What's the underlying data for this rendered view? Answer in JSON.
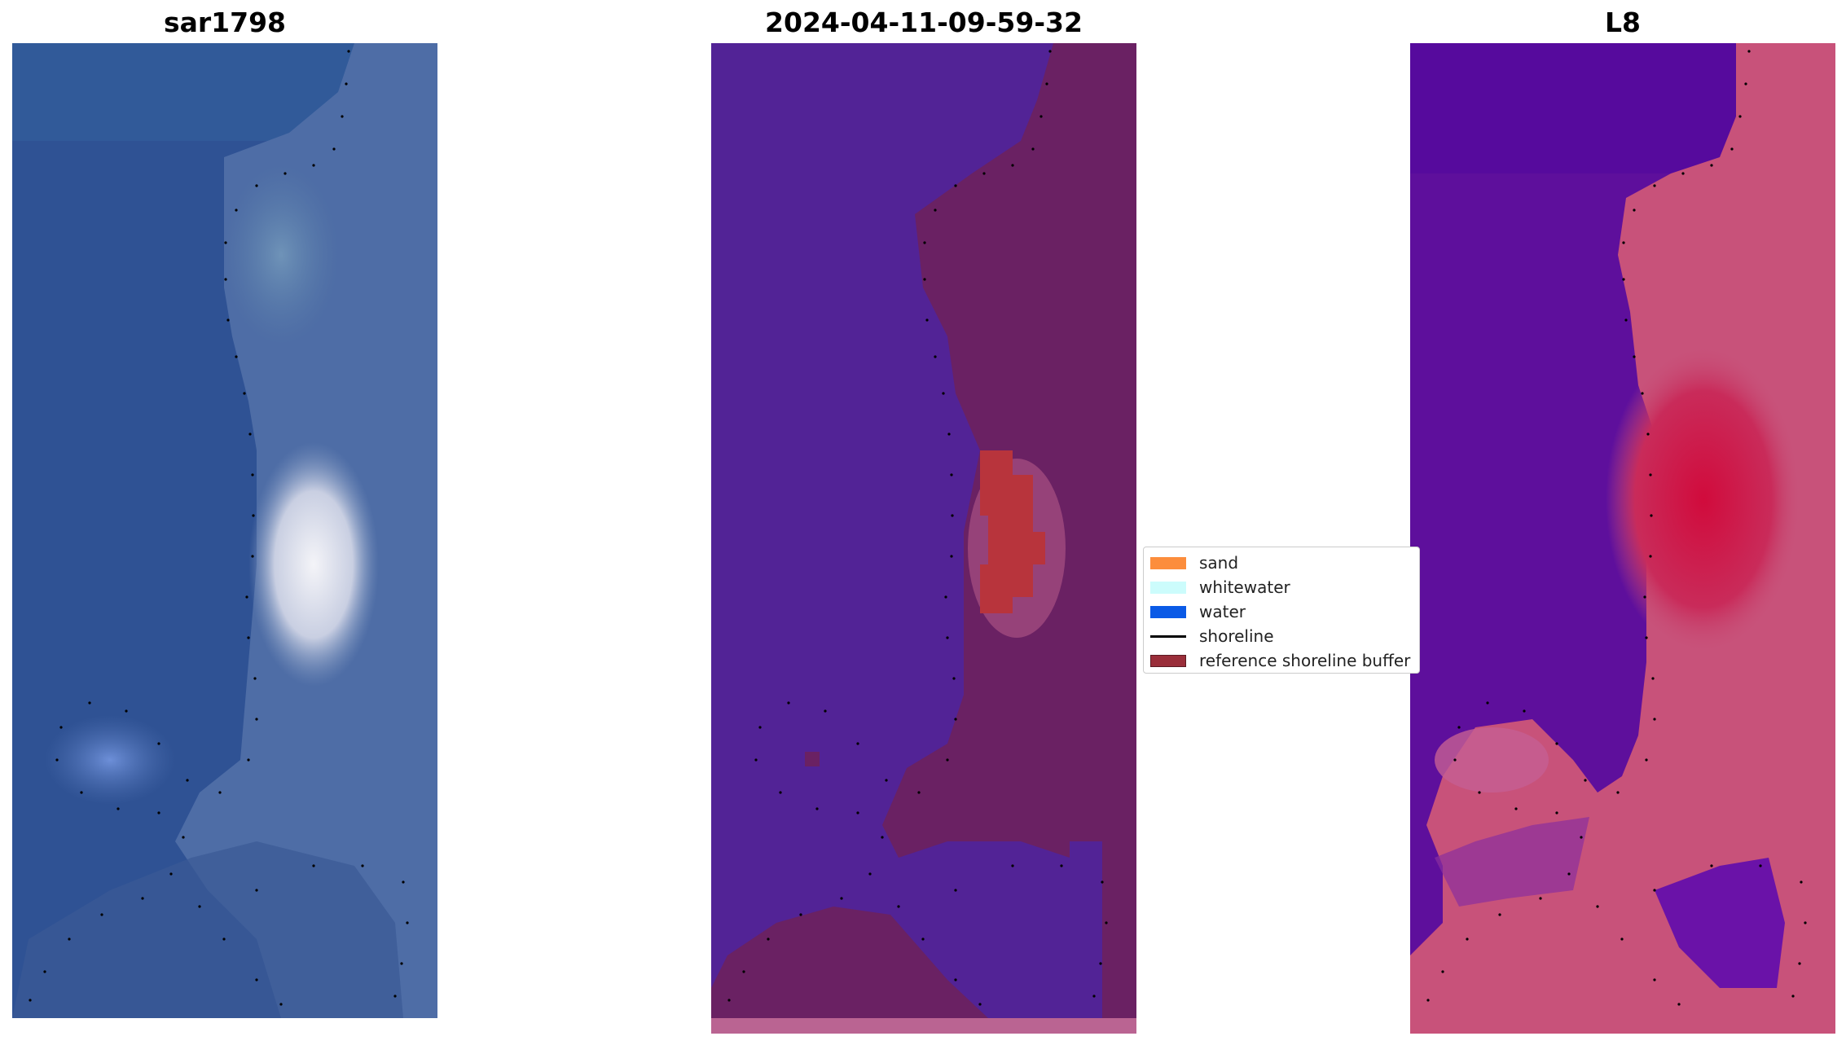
{
  "panels": [
    {
      "title": "sar1798"
    },
    {
      "title": "2024-04-11-09-59-32"
    },
    {
      "title": "L8"
    }
  ],
  "legend": {
    "items": [
      {
        "label": "sand",
        "color": "#fc8d3c",
        "kind": "patch"
      },
      {
        "label": "whitewater",
        "color": "#ccfcfc",
        "kind": "patch"
      },
      {
        "label": "water",
        "color": "#0a5ae6",
        "kind": "patch"
      },
      {
        "label": "shoreline",
        "color": "#000000",
        "kind": "line"
      },
      {
        "label": "reference shoreline buffer",
        "color": "#9a2e3a",
        "kind": "patch"
      }
    ]
  },
  "colors": {
    "rgb_water": "#2e4f8a",
    "rgb_land": "#5a7cae",
    "rgb_bright": "#e8eaf2",
    "class_water": "#522396",
    "class_land": "#6a2163",
    "class_sand_buffer": "#b8343c",
    "class_edge": "#b95e8c",
    "mndwi_water": "#5e0f9c",
    "mndwi_land": "#c8527a",
    "mndwi_high": "#d10b3c"
  }
}
